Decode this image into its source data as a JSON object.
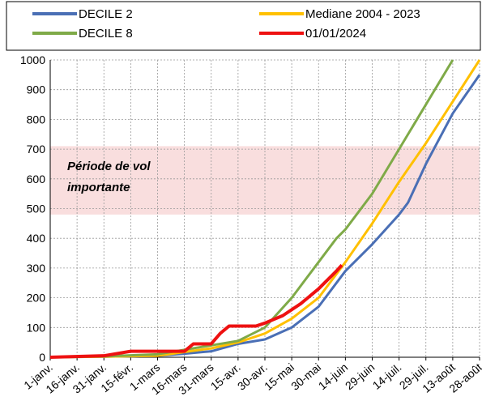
{
  "chart_data": {
    "type": "line",
    "legend": "top",
    "grid": true,
    "xlim": [
      0,
      240
    ],
    "xticks": [
      {
        "value": 0,
        "label": "1-janv."
      },
      {
        "value": 15,
        "label": "16-janv."
      },
      {
        "value": 30,
        "label": "31-janv."
      },
      {
        "value": 45,
        "label": "15-févr."
      },
      {
        "value": 60,
        "label": "1-mars"
      },
      {
        "value": 75,
        "label": "16-mars"
      },
      {
        "value": 90,
        "label": "31-mars"
      },
      {
        "value": 105,
        "label": "15-avr."
      },
      {
        "value": 120,
        "label": "30-avr."
      },
      {
        "value": 135,
        "label": "15-mai"
      },
      {
        "value": 150,
        "label": "30-mai"
      },
      {
        "value": 165,
        "label": "14-juin"
      },
      {
        "value": 180,
        "label": "29-juin"
      },
      {
        "value": 195,
        "label": "14-juil."
      },
      {
        "value": 210,
        "label": "29-juil."
      },
      {
        "value": 225,
        "label": "13-août"
      },
      {
        "value": 240,
        "label": "28-août"
      }
    ],
    "ylim": [
      0,
      1000
    ],
    "yticks": [
      0,
      100,
      200,
      300,
      400,
      500,
      600,
      700,
      800,
      900,
      1000
    ],
    "band": {
      "values": [
        480,
        710
      ],
      "color": "#f9dede"
    },
    "annotation": [
      "Période de vol",
      "importante"
    ],
    "series": [
      {
        "name": "DECILE 2",
        "color": "#4a6fb5",
        "x": [
          0,
          30,
          60,
          75,
          90,
          105,
          120,
          135,
          150,
          165,
          180,
          195,
          200,
          210,
          225,
          240
        ],
        "values": [
          0,
          2,
          5,
          12,
          20,
          45,
          60,
          100,
          170,
          290,
          380,
          480,
          520,
          650,
          820,
          950
        ]
      },
      {
        "name": "Mediane 2004 - 2023",
        "color": "#ffc000",
        "x": [
          0,
          30,
          60,
          90,
          105,
          120,
          135,
          150,
          165,
          180,
          195,
          210,
          225,
          240
        ],
        "values": [
          0,
          2,
          5,
          30,
          50,
          80,
          130,
          200,
          320,
          450,
          590,
          720,
          860,
          1000
        ]
      },
      {
        "name": "DECILE 8",
        "color": "#7faa48",
        "x": [
          0,
          30,
          60,
          90,
          105,
          120,
          135,
          150,
          160,
          165,
          180,
          195,
          210,
          225
        ],
        "values": [
          0,
          3,
          10,
          40,
          55,
          100,
          200,
          320,
          400,
          430,
          550,
          700,
          850,
          1000
        ]
      },
      {
        "name": "01/01/2024",
        "color": "#ee1111",
        "x": [
          0,
          30,
          45,
          75,
          80,
          90,
          95,
          100,
          115,
          120,
          130,
          140,
          150,
          160,
          163
        ],
        "values": [
          0,
          5,
          20,
          20,
          45,
          45,
          80,
          105,
          105,
          115,
          140,
          180,
          230,
          290,
          310
        ]
      }
    ]
  }
}
